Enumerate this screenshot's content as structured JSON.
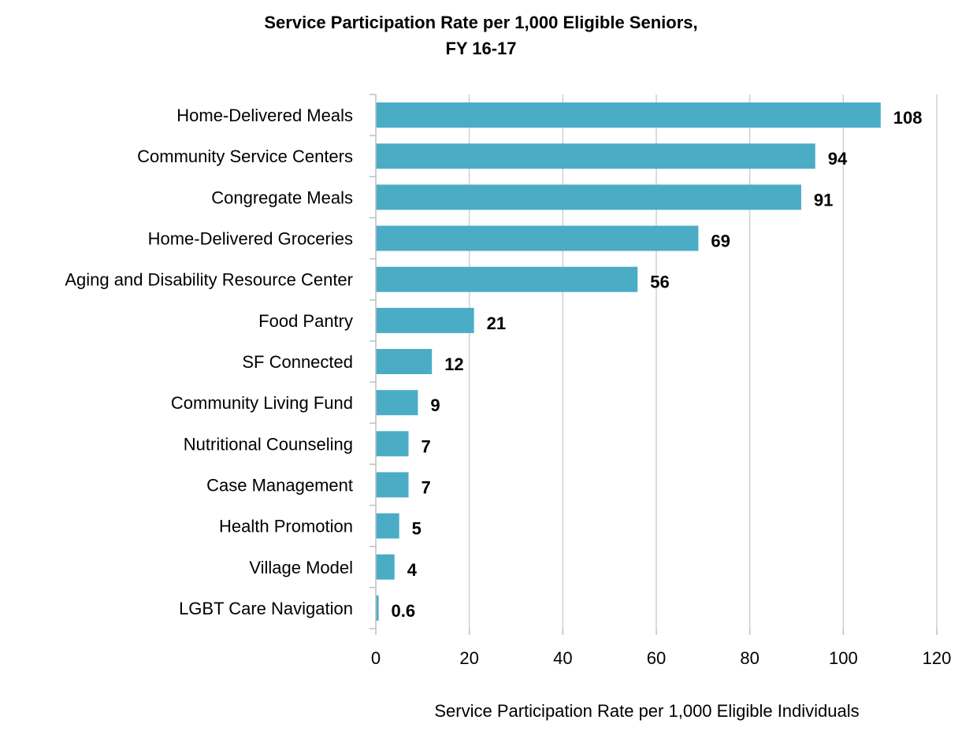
{
  "chart_data": {
    "type": "bar",
    "orientation": "horizontal",
    "title_lines": [
      "Service Participation Rate per 1,000 Eligible Seniors,",
      "FY 16-17"
    ],
    "xlabel": "Service Participation Rate per 1,000 Eligible Individuals",
    "ylabel": "",
    "xlim": [
      0,
      120
    ],
    "xticks": [
      0,
      20,
      40,
      60,
      80,
      100,
      120
    ],
    "grid": true,
    "legend": "none",
    "bar_color": "#4BACC6",
    "categories": [
      "Home-Delivered Meals",
      "Community Service Centers",
      "Congregate Meals",
      "Home-Delivered Groceries",
      "Aging and Disability Resource Center",
      "Food Pantry",
      "SF Connected",
      "Community Living Fund",
      "Nutritional Counseling",
      "Case Management",
      "Health Promotion",
      "Village Model",
      "LGBT Care Navigation"
    ],
    "values": [
      108,
      94,
      91,
      69,
      56,
      21,
      12,
      9,
      7,
      7,
      5,
      4,
      0.6
    ],
    "data_labels": [
      "108",
      "94",
      "91",
      "69",
      "56",
      "21",
      "12",
      "9",
      "7",
      "7",
      "5",
      "4",
      "0.6"
    ]
  }
}
